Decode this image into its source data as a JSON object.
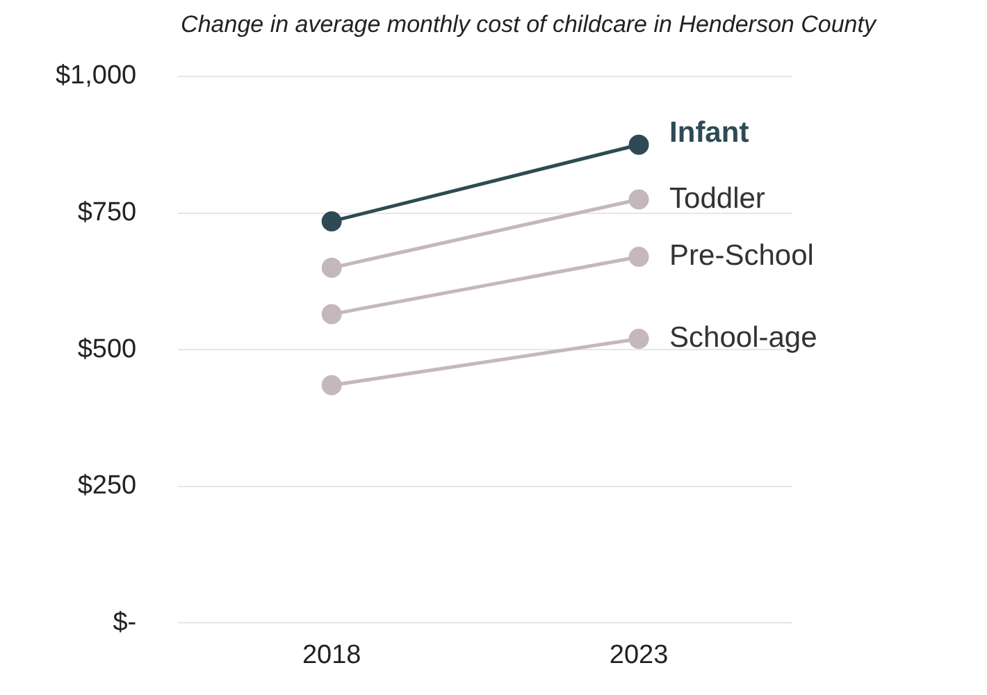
{
  "chart_data": {
    "type": "line",
    "title": "Change in average monthly cost of childcare in Henderson County",
    "categories": [
      "2018",
      "2023"
    ],
    "series": [
      {
        "name": "Infant",
        "color": "#2e4b55",
        "values": [
          735,
          875
        ]
      },
      {
        "name": "Toddler",
        "color": "#c4b8bc",
        "values": [
          650,
          775
        ]
      },
      {
        "name": "Pre-School",
        "color": "#c4b8bc",
        "values": [
          565,
          670
        ]
      },
      {
        "name": "School-age",
        "color": "#c4b8bc",
        "values": [
          435,
          520
        ]
      }
    ],
    "ylim": [
      0,
      1000
    ],
    "yticks": [
      {
        "value": 0,
        "label": "$-"
      },
      {
        "value": 250,
        "label": "$250"
      },
      {
        "value": 500,
        "label": "$500"
      },
      {
        "value": 750,
        "label": "$750"
      },
      {
        "value": 1000,
        "label": "$1,000"
      }
    ],
    "grid": "y",
    "legend": false,
    "marker": "circle",
    "line_style": "solid"
  }
}
